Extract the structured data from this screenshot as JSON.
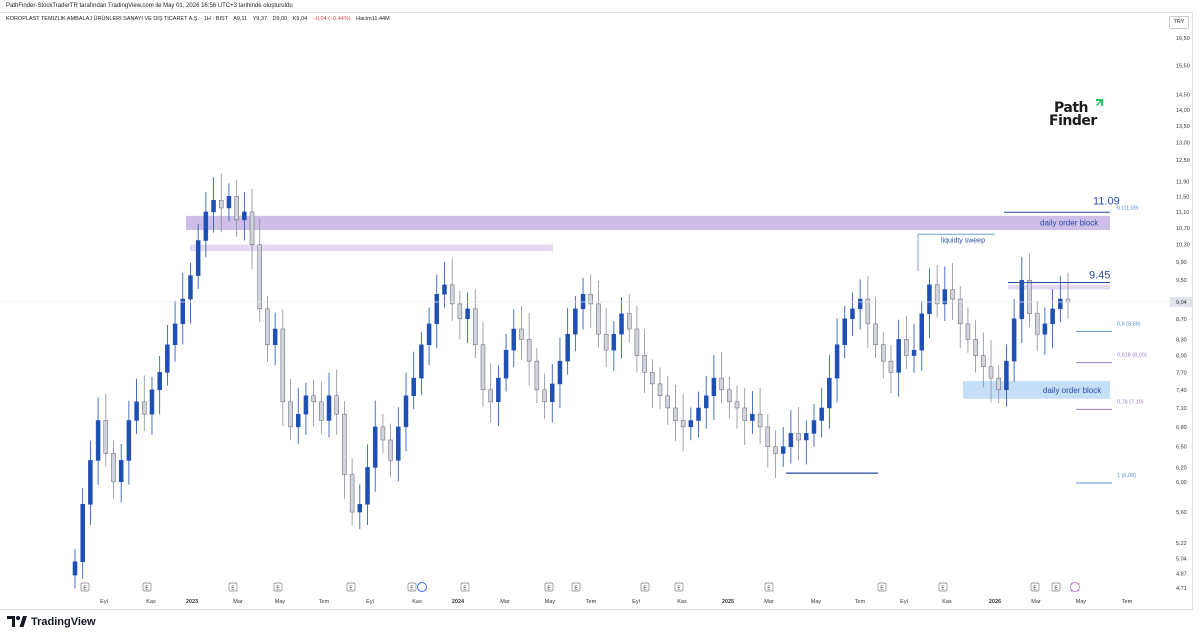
{
  "header": {
    "attribution": "PathFinder-StockTraderTR tarafından TradingView.com ile May 01, 2026 16:56 UTC+3 tarihinde oluşturuldu"
  },
  "symbol_line": {
    "name": "KOROPLAST TEMIZLIK AMBALAJ ÜRÜNLERI SANAYI VE DIŞ TICARET A.Ş. · 1H · BIST",
    "open": "A9,11",
    "high": "Y9,37",
    "low": "D9,00",
    "close": "K9,04",
    "change": "−0,04 (−0,44%)",
    "volume": "Hacim11,44M"
  },
  "currency": "TRY",
  "logo": {
    "line1": "Path",
    "line2": "Finder",
    "accent_color": "#22c55e"
  },
  "footer": {
    "brand": "TradingView"
  },
  "colors": {
    "up_candle": "#1e4fb4",
    "down_candle": "#d1d4dc",
    "down_candle_border": "#5d606b",
    "order_block_purple": "#c9b8e6",
    "order_block_blue": "#bfdcf7",
    "fib_label": "#5b8fd6",
    "fib_purple": "#9b7cc9",
    "level_line": "#2c4aa6"
  },
  "chart_data": {
    "type": "candlestick",
    "price_axis": {
      "ticks": [
        "16,50",
        "15,50",
        "14,50",
        "14,00",
        "13,50",
        "13,00",
        "12,50",
        "11,90",
        "11,50",
        "11,10",
        "10,70",
        "10,30",
        "9,90",
        "9,50",
        "9,04",
        "8,70",
        "8,30",
        "8,00",
        "7,70",
        "7,40",
        "7,10",
        "6,80",
        "6,50",
        "6,20",
        "6,00",
        "5,60",
        "5,22",
        "5,04",
        "4,87",
        "4,71"
      ],
      "tick_values": [
        16.5,
        15.5,
        14.5,
        14.0,
        13.5,
        13.0,
        12.5,
        11.9,
        11.5,
        11.1,
        10.7,
        10.3,
        9.9,
        9.5,
        9.04,
        8.7,
        8.3,
        8.0,
        7.7,
        7.4,
        7.1,
        6.8,
        6.5,
        6.2,
        6.0,
        5.6,
        5.22,
        5.04,
        4.87,
        4.71
      ],
      "last_price": "9,04",
      "scale": "log"
    },
    "time_axis": {
      "labels": [
        "Eyl",
        "Kas",
        "2023",
        "Mar",
        "May",
        "Tem",
        "Eyl",
        "Kas",
        "2024",
        "Mar",
        "May",
        "Tem",
        "Eyl",
        "Kas",
        "2025",
        "Mar",
        "May",
        "Tem",
        "Eyl",
        "Kas",
        "2026",
        "Mar",
        "May",
        "Tem"
      ],
      "bold": [
        "2023",
        "2024",
        "2025",
        "2026"
      ]
    },
    "event_markers": [
      "E",
      "E",
      "E",
      "E",
      "E",
      "E",
      "E",
      "E",
      "E",
      "E",
      "E",
      "E",
      "E",
      "E",
      "E",
      "E",
      "E",
      "E",
      "E",
      "E"
    ],
    "annotations": {
      "price_11_09": "11.09",
      "price_9_45": "9.45",
      "order_block_top": "daily order block",
      "order_block_bottom": "daily order block",
      "liquidity_sweep": "liquidty sweep",
      "fib_0": "0 (11,09)",
      "fib_05": "0,5 (8,59)",
      "fib_0618": "0,618 (8,00)",
      "fib_078": "0,78 (7,19)",
      "fib_1": "1 (6,08)"
    },
    "fib_levels": [
      {
        "ratio": 0,
        "price": 11.09
      },
      {
        "ratio": 0.5,
        "price": 8.59
      },
      {
        "ratio": 0.618,
        "price": 8.0
      },
      {
        "ratio": 0.78,
        "price": 7.19
      },
      {
        "ratio": 1,
        "price": 6.08
      }
    ],
    "zones": [
      {
        "label": "daily order block",
        "from_price": 10.65,
        "to_price": 11.0,
        "color": "purple"
      },
      {
        "label": "",
        "from_price": 10.15,
        "to_price": 10.3,
        "color": "purple_light"
      },
      {
        "label": "",
        "from_price": 9.3,
        "to_price": 9.4,
        "color": "purple_light"
      },
      {
        "label": "daily order block",
        "from_price": 7.25,
        "to_price": 7.55,
        "color": "blue"
      }
    ],
    "candles_close": [
      5.0,
      5.7,
      6.3,
      6.9,
      6.4,
      6.0,
      6.3,
      6.9,
      7.2,
      7.0,
      7.4,
      7.7,
      8.2,
      8.6,
      9.1,
      9.6,
      10.4,
      11.1,
      11.4,
      11.2,
      11.5,
      10.9,
      11.1,
      10.3,
      8.9,
      8.2,
      8.5,
      7.2,
      6.8,
      7.0,
      7.3,
      7.2,
      6.9,
      7.3,
      7.0,
      6.1,
      5.6,
      5.7,
      6.2,
      6.8,
      6.6,
      6.3,
      6.8,
      7.3,
      7.6,
      8.2,
      8.6,
      9.2,
      9.4,
      9.0,
      8.7,
      8.9,
      8.2,
      7.4,
      7.2,
      7.6,
      8.1,
      8.5,
      8.3,
      7.9,
      7.4,
      7.2,
      7.5,
      7.9,
      8.4,
      8.9,
      9.2,
      9.0,
      8.4,
      8.1,
      8.4,
      8.8,
      8.5,
      8.0,
      7.7,
      7.5,
      7.3,
      7.1,
      6.9,
      6.8,
      6.9,
      7.1,
      7.3,
      7.6,
      7.4,
      7.2,
      7.1,
      6.9,
      7.0,
      6.8,
      6.5,
      6.4,
      6.5,
      6.7,
      6.6,
      6.7,
      6.9,
      7.1,
      7.6,
      8.2,
      8.7,
      8.9,
      9.1,
      8.6,
      8.2,
      7.9,
      7.7,
      8.3,
      8.0,
      8.1,
      8.8,
      9.4,
      9.0,
      9.3,
      9.1,
      8.6,
      8.3,
      8.0,
      7.8,
      7.6,
      7.4,
      7.9,
      8.7,
      9.5,
      8.8,
      8.4,
      8.6,
      8.9,
      9.1,
      9.04
    ]
  }
}
